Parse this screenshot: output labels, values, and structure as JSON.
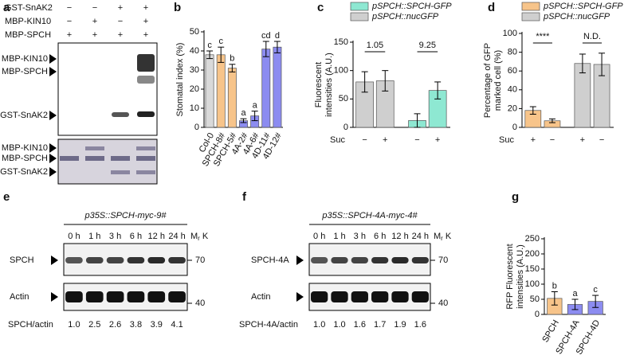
{
  "panel_a": {
    "letter": "a",
    "rows": [
      {
        "label": "GST-SnAK2",
        "signs": [
          "−",
          "−",
          "+",
          "+"
        ]
      },
      {
        "label": "MBP-KIN10",
        "signs": [
          "−",
          "+",
          "−",
          "+"
        ]
      },
      {
        "label": "MBP-SPCH",
        "signs": [
          "+",
          "+",
          "+",
          "+"
        ]
      }
    ],
    "autorad_labels": [
      "MBP-KIN10",
      "MBP-SPCH",
      "GST-SnAK2"
    ],
    "gel_labels": [
      "MBP-KIN10",
      "MBP-SPCH",
      "GST-SnAK2"
    ]
  },
  "panel_e": {
    "letter": "e",
    "title": "p35S::SPCH-myc-9#",
    "times": [
      "0 h",
      "1 h",
      "3 h",
      "6 h",
      "12 h",
      "24 h"
    ],
    "mr": "M",
    "mr_sub": "r",
    "mr_unit": "K",
    "bands": [
      "SPCH",
      "Actin"
    ],
    "markers": [
      "70",
      "40"
    ],
    "ratio_label": "SPCH/actin",
    "ratios": [
      "1.0",
      "2.5",
      "2.6",
      "3.8",
      "3.9",
      "4.1"
    ]
  },
  "panel_f": {
    "letter": "f",
    "title": "p35S::SPCH-4A-myc-4#",
    "times": [
      "0 h",
      "1 h",
      "3 h",
      "6 h",
      "12 h",
      "24 h"
    ],
    "mr": "M",
    "mr_sub": "r",
    "mr_unit": "K",
    "bands": [
      "SPCH-4A",
      "Actin"
    ],
    "markers": [
      "70",
      "40"
    ],
    "ratio_label": "SPCH-4A/actin",
    "ratios": [
      "1.0",
      "1.0",
      "1.6",
      "1.7",
      "1.9",
      "1.6"
    ]
  },
  "chart_data": [
    {
      "type": "bar",
      "panel_label": "b",
      "ylabel_lines": [
        "Stomatal index (%)"
      ],
      "categories": [
        "Col-0",
        "SPCH-8#",
        "SPCH-5#",
        "4A-2#",
        "4A-6#",
        "4D-11#",
        "4D-12#"
      ],
      "values": [
        38,
        38,
        31,
        3.5,
        6,
        41,
        42
      ],
      "errors": [
        2,
        4,
        2,
        1,
        2.5,
        4,
        3
      ],
      "colors": [
        "#d9d9d9",
        "#f7c48a",
        "#f7c48a",
        "#8c8cf0",
        "#8c8cf0",
        "#8c8cf0",
        "#8c8cf0"
      ],
      "group_letters": [
        "c",
        "c",
        "b",
        "a",
        "a",
        "cd",
        "d"
      ],
      "ylim": [
        0,
        50
      ],
      "yticks": [
        0,
        10,
        20,
        30,
        40,
        50
      ]
    },
    {
      "type": "bar",
      "panel_label": "c",
      "ylabel_lines": [
        "Fluorescent",
        "intensities (A.U.)"
      ],
      "x_label": "Suc",
      "categories": [
        "−",
        "+",
        "−",
        "+"
      ],
      "series": [
        {
          "name": "pSPCH::SPCH-GFP",
          "color": "#8ee8d2",
          "values": [
            null,
            null,
            12,
            65
          ],
          "errors": [
            null,
            null,
            12,
            15
          ]
        },
        {
          "name": "pSPCH::nucGFP",
          "color": "#cfcfcf",
          "values": [
            80,
            82,
            null,
            null
          ],
          "errors": [
            18,
            18,
            null,
            null
          ]
        }
      ],
      "annotations": [
        "1.05",
        "9.25"
      ],
      "ylim": [
        0,
        150
      ],
      "yticks": [
        0,
        50,
        100,
        150
      ]
    },
    {
      "type": "bar",
      "panel_label": "d",
      "ylabel_lines": [
        "Percentage of GFP",
        "marked cell (%)"
      ],
      "x_label": "Suc",
      "categories": [
        "+",
        "−",
        "+",
        "−"
      ],
      "series": [
        {
          "name": "pSPCH::SPCH-GFP",
          "color": "#f7c48a",
          "values": [
            18,
            7,
            null,
            null
          ],
          "errors": [
            4,
            2,
            null,
            null
          ]
        },
        {
          "name": "pSPCH::nucGFP",
          "color": "#cfcfcf",
          "values": [
            null,
            null,
            68,
            67
          ],
          "errors": [
            null,
            null,
            10,
            12
          ]
        }
      ],
      "annotations": [
        "****",
        "N.D."
      ],
      "ylim": [
        0,
        100
      ],
      "yticks": [
        0,
        20,
        40,
        60,
        80,
        100
      ]
    },
    {
      "type": "bar",
      "panel_label": "g",
      "ylabel_lines": [
        "RFP Fluorescent",
        "intensities (A.U.)"
      ],
      "categories": [
        "SPCH",
        "SPCH-4A",
        "SPCH-4D"
      ],
      "values": [
        53,
        33,
        43
      ],
      "errors": [
        22,
        17,
        20
      ],
      "colors": [
        "#f7c48a",
        "#8c8cf0",
        "#8c8cf0"
      ],
      "group_letters": [
        "b",
        "a",
        "c"
      ],
      "ylim": [
        0,
        250
      ],
      "yticks": [
        0,
        50,
        100,
        150,
        200,
        250
      ]
    }
  ]
}
